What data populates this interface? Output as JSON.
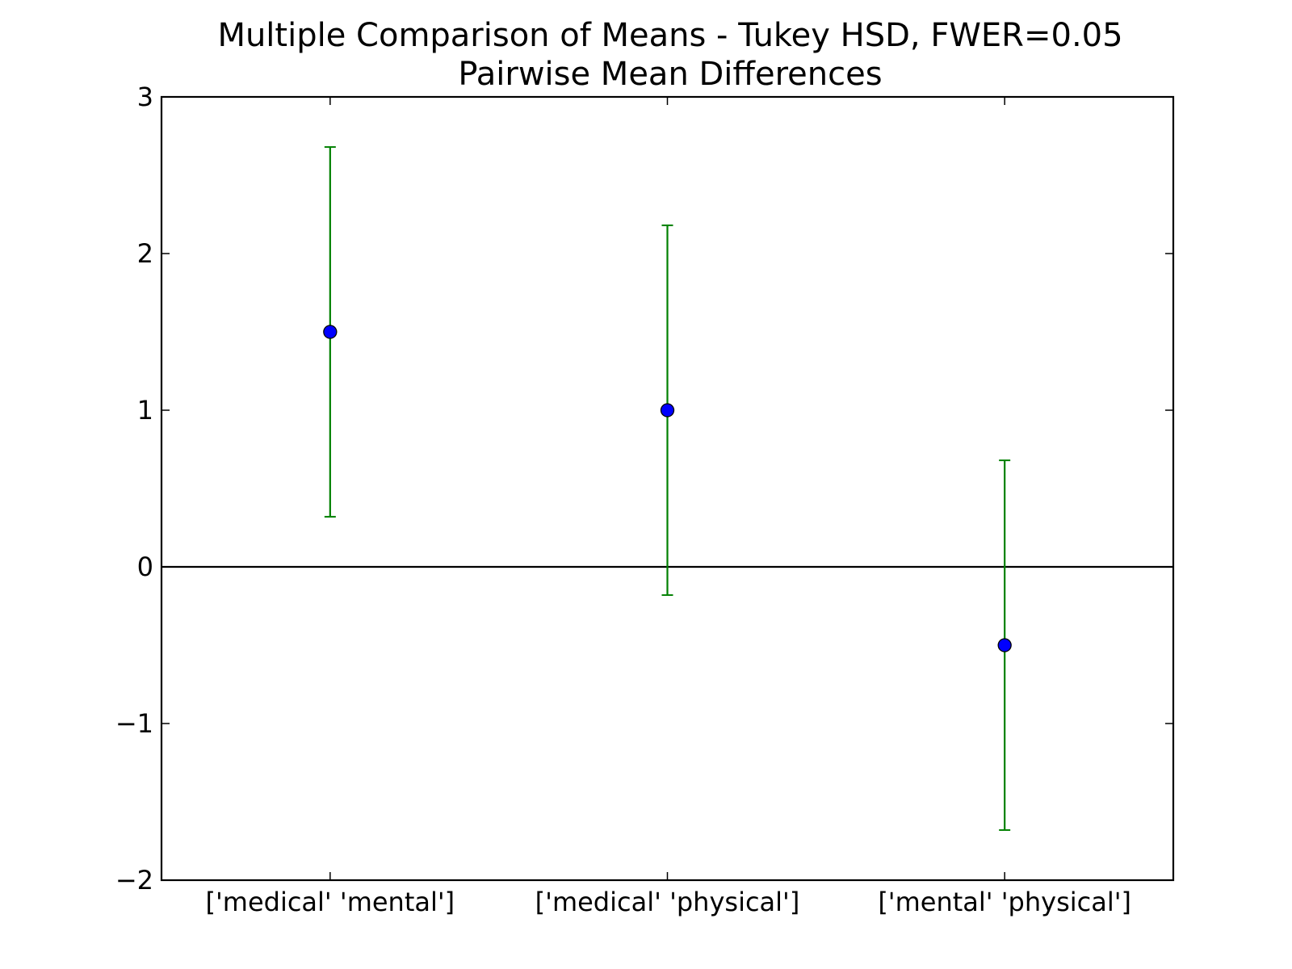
{
  "chart_data": {
    "type": "errorbar",
    "title": "Multiple Comparison of Means - Tukey HSD, FWER=0.05",
    "subtitle": "Pairwise Mean Differences",
    "xlabel": "",
    "ylabel": "",
    "categories": [
      "['medical' 'mental']",
      "['medical' 'physical']",
      "['mental' 'physical']"
    ],
    "means": [
      1.5,
      1.0,
      -0.5
    ],
    "lower": [
      0.32,
      -0.18,
      -1.68
    ],
    "upper": [
      2.68,
      2.18,
      0.68
    ],
    "ylim": [
      -2,
      3
    ],
    "yticks": [
      -2,
      -1,
      0,
      1,
      2,
      3
    ],
    "ytick_labels": [
      "−2",
      "−1",
      "0",
      "1",
      "2",
      "3"
    ],
    "reference_line": 0,
    "grid": false,
    "colors": {
      "errorbar": "#008000",
      "marker": "#0000ff",
      "marker_edge": "#000000",
      "reference_line": "#000000",
      "axes": "#000000"
    }
  }
}
